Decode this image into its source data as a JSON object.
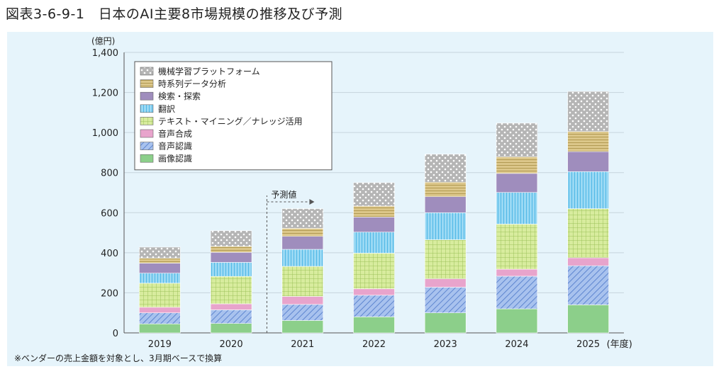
{
  "page": {
    "title": "図表3-6-9-1　日本のAI主要8市場規模の推移及び予測",
    "footnote": "※ベンダーの売上金額を対象とし、3月期ベースで換算"
  },
  "chart_data": {
    "type": "bar",
    "stacked": true,
    "title": "",
    "ylabel": "(億円)",
    "xlabel": "",
    "x_unit_label": "(年度)",
    "ylim": [
      0,
      1400
    ],
    "yticks": [
      0,
      200,
      400,
      600,
      800,
      1000,
      1200,
      1400
    ],
    "ytick_labels": [
      "0",
      "200",
      "400",
      "600",
      "800",
      "1,000",
      "1,200",
      "1,400"
    ],
    "categories": [
      "2019",
      "2020",
      "2021",
      "2022",
      "2023",
      "2024",
      "2025"
    ],
    "forecast_label": "予測値",
    "forecast_from": "2021",
    "legend_position": "top-left",
    "series": [
      {
        "name": "画像認識",
        "color": "#8ccf8a",
        "pattern": "solid",
        "values": [
          45,
          47,
          62,
          80,
          100,
          120,
          140
        ]
      },
      {
        "name": "音声認識",
        "color": "#a8c2ee",
        "pattern": "diagonal",
        "values": [
          55,
          68,
          80,
          108,
          128,
          163,
          195
        ]
      },
      {
        "name": "音声合成",
        "color": "#e8a4cc",
        "pattern": "solid",
        "values": [
          28,
          30,
          40,
          32,
          42,
          35,
          40
        ]
      },
      {
        "name": "テキスト・マイニング／ナレッジ活用",
        "color": "#d8ec9e",
        "pattern": "grid",
        "values": [
          120,
          137,
          150,
          178,
          195,
          225,
          245
        ]
      },
      {
        "name": "翻訳",
        "color": "#9ad9f4",
        "pattern": "vlines",
        "values": [
          50,
          70,
          85,
          105,
          135,
          158,
          185
        ]
      },
      {
        "name": "検索・探索",
        "color": "#9f8dbd",
        "pattern": "solid",
        "values": [
          50,
          50,
          65,
          75,
          80,
          95,
          100
        ]
      },
      {
        "name": "時系列データ分析",
        "color": "#dcc78a",
        "pattern": "hlines",
        "values": [
          25,
          30,
          40,
          55,
          72,
          83,
          100
        ]
      },
      {
        "name": "機械学習プラットフォーム",
        "color": "#b5b5b5",
        "pattern": "dots",
        "values": [
          55,
          78,
          98,
          117,
          140,
          168,
          200
        ]
      }
    ]
  }
}
